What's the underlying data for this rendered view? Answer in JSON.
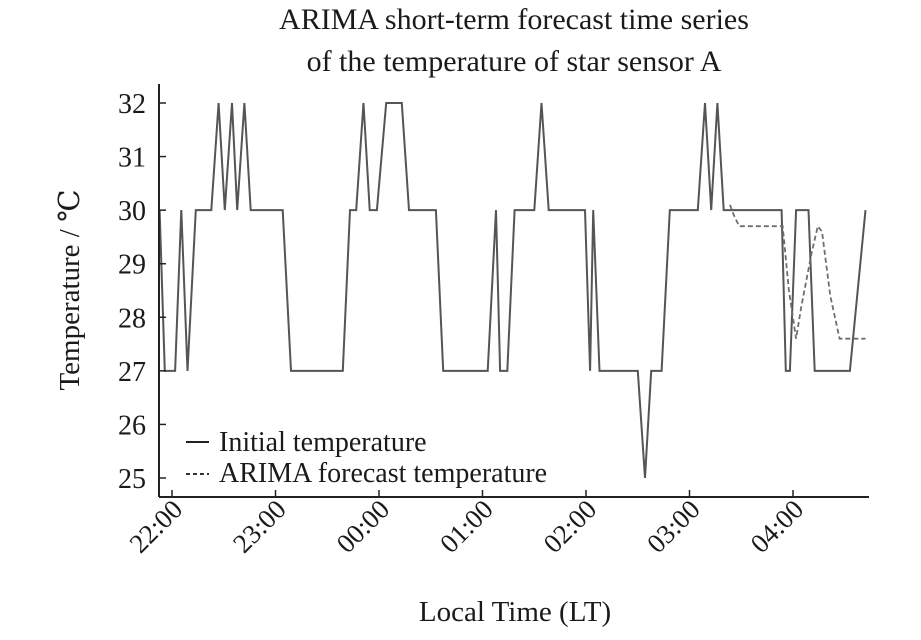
{
  "chart_data": {
    "type": "line",
    "title_line1": "ARIMA short-term forecast time series",
    "title_line2": "of the temperature of star sensor A",
    "xlabel": "Local Time (LT)",
    "ylabel": "Temperature / ℃",
    "x_unit": "hours since 22:00",
    "x_ticks": [
      {
        "value": 0,
        "label": "22:00"
      },
      {
        "value": 1,
        "label": "23:00"
      },
      {
        "value": 2,
        "label": "00:00"
      },
      {
        "value": 3,
        "label": "01:00"
      },
      {
        "value": 4,
        "label": "02:00"
      },
      {
        "value": 5,
        "label": "03:00"
      },
      {
        "value": 6,
        "label": "04:00"
      }
    ],
    "y_ticks": [
      25,
      26,
      27,
      28,
      29,
      30,
      31,
      32
    ],
    "xlim": [
      -0.12,
      6.7
    ],
    "ylim": [
      24.7,
      32.3
    ],
    "legend_position": "lower-left",
    "series": [
      {
        "name": "Initial temperature",
        "style": "solid",
        "color": "#555555",
        "points": [
          [
            -0.12,
            30
          ],
          [
            -0.07,
            27
          ],
          [
            0.03,
            27
          ],
          [
            0.09,
            30
          ],
          [
            0.15,
            27
          ],
          [
            0.23,
            30
          ],
          [
            0.38,
            30
          ],
          [
            0.45,
            32
          ],
          [
            0.51,
            30
          ],
          [
            0.58,
            32
          ],
          [
            0.63,
            30
          ],
          [
            0.7,
            32
          ],
          [
            0.76,
            30
          ],
          [
            1.07,
            30
          ],
          [
            1.15,
            27
          ],
          [
            1.65,
            27
          ],
          [
            1.72,
            30
          ],
          [
            1.78,
            30
          ],
          [
            1.85,
            32
          ],
          [
            1.91,
            30
          ],
          [
            1.98,
            30
          ],
          [
            2.07,
            32
          ],
          [
            2.22,
            32
          ],
          [
            2.29,
            30
          ],
          [
            2.55,
            30
          ],
          [
            2.62,
            27
          ],
          [
            3.05,
            27
          ],
          [
            3.13,
            30
          ],
          [
            3.17,
            27
          ],
          [
            3.24,
            27
          ],
          [
            3.31,
            30
          ],
          [
            3.5,
            30
          ],
          [
            3.57,
            32
          ],
          [
            3.64,
            30
          ],
          [
            3.99,
            30
          ],
          [
            4.04,
            27
          ],
          [
            4.07,
            30
          ],
          [
            4.13,
            27
          ],
          [
            4.5,
            27
          ],
          [
            4.57,
            25
          ],
          [
            4.63,
            27
          ],
          [
            4.73,
            27
          ],
          [
            4.81,
            30
          ],
          [
            5.08,
            30
          ],
          [
            5.15,
            32
          ],
          [
            5.21,
            30
          ],
          [
            5.27,
            32
          ],
          [
            5.33,
            30
          ],
          [
            5.89,
            30
          ],
          [
            5.93,
            27
          ],
          [
            5.97,
            27
          ],
          [
            6.03,
            30
          ],
          [
            6.15,
            30
          ],
          [
            6.21,
            27
          ],
          [
            6.55,
            27
          ],
          [
            6.7,
            30
          ]
        ]
      },
      {
        "name": "ARIMA forecast temperature",
        "style": "dashed",
        "color": "#6e6e6e",
        "points": [
          [
            5.39,
            30.1
          ],
          [
            5.43,
            29.9
          ],
          [
            5.48,
            29.7
          ],
          [
            5.57,
            29.7
          ],
          [
            5.64,
            29.7
          ],
          [
            5.9,
            29.7
          ],
          [
            5.96,
            28.5
          ],
          [
            6.03,
            27.6
          ],
          [
            6.08,
            28.2
          ],
          [
            6.18,
            29.2
          ],
          [
            6.24,
            29.7
          ],
          [
            6.28,
            29.6
          ],
          [
            6.36,
            28.4
          ],
          [
            6.45,
            27.6
          ],
          [
            6.53,
            27.6
          ],
          [
            6.7,
            27.6
          ]
        ]
      }
    ]
  }
}
